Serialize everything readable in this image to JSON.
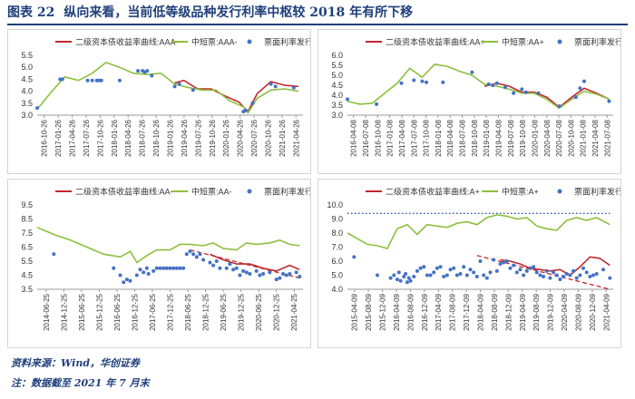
{
  "header": {
    "figure_no": "图表 22",
    "title": "纵向来看，当前低等级品种发行利率中枢较 2018 年有所下移"
  },
  "footer": {
    "source": "资料来源：Wind，华创证券",
    "note": "注：数据截至 2021 年 7 月末"
  },
  "colors": {
    "red": "#c0282d",
    "green": "#8dbf3e",
    "blue": "#4472c4",
    "dotted": "#2f55a4"
  },
  "chart_data": [
    {
      "type": "line",
      "title": "",
      "legend": [
        "二级资本债收益率曲线:AAA-",
        "中短票:AAA-",
        "票面利率发行时"
      ],
      "yticks": [
        "3.0",
        "3.5",
        "4.0",
        "4.5",
        "5.0",
        "5.5"
      ],
      "ylim": [
        3.0,
        5.5
      ],
      "xlim": [
        0,
        58
      ],
      "xtick_labels": [
        "2016-10-26",
        "2017-01-26",
        "2017-04-26",
        "2017-07-26",
        "2017-10-26",
        "2018-01-26",
        "2018-04-26",
        "2018-07-26",
        "2018-10-26",
        "2019-01-26",
        "2019-04-26",
        "2019-07-26",
        "2019-10-26",
        "2020-01-26",
        "2020-04-26",
        "2020-07-26",
        "2020-10-26",
        "2021-01-26",
        "2021-04-26"
      ],
      "series": [
        {
          "name": "二级资本债收益率曲线:AAA-",
          "color": "red",
          "style": "line",
          "x": [
            30,
            32,
            35,
            38,
            41,
            44,
            46,
            48,
            51,
            54,
            57
          ],
          "y": [
            4.35,
            4.45,
            4.1,
            4.1,
            3.8,
            3.55,
            3.15,
            3.9,
            4.4,
            4.25,
            4.2
          ]
        },
        {
          "name": "中短票:AAA-",
          "color": "green",
          "style": "line",
          "x": [
            0,
            3,
            6,
            9,
            12,
            15,
            18,
            21,
            24,
            27,
            30,
            33,
            36,
            39,
            42,
            45,
            46,
            48,
            51,
            54,
            57
          ],
          "y": [
            3.25,
            3.95,
            4.6,
            4.45,
            4.75,
            5.2,
            5.0,
            4.75,
            4.7,
            4.75,
            4.3,
            4.15,
            4.05,
            4.05,
            3.6,
            3.35,
            3.1,
            3.7,
            4.05,
            4.1,
            4.0
          ]
        },
        {
          "name": "票面利率发行时",
          "color": "blue",
          "style": "scatter",
          "x": [
            0,
            5,
            5.5,
            11,
            12,
            13,
            13.5,
            14,
            18,
            22,
            23,
            23.5,
            24,
            25,
            30,
            31,
            34,
            45,
            45.5,
            47,
            51,
            52,
            56
          ],
          "y": [
            3.3,
            4.5,
            4.5,
            4.45,
            4.45,
            4.45,
            4.45,
            4.45,
            4.45,
            4.85,
            4.85,
            4.8,
            4.85,
            4.65,
            4.2,
            4.3,
            4.05,
            3.15,
            3.2,
            3.5,
            4.3,
            4.2,
            4.15
          ]
        }
      ]
    },
    {
      "type": "line",
      "title": "",
      "legend": [
        "二级资本债收益率曲线:AA+",
        "中短票:AA+",
        "票面利率发行时"
      ],
      "yticks": [
        "3.0",
        "3.5",
        "4.0",
        "4.5",
        "5.0",
        "5.5",
        "6.0"
      ],
      "ylim": [
        3.0,
        6.0
      ],
      "xlim": [
        0,
        64
      ],
      "xtick_labels": [
        "2016-04-08",
        "2016-07-08",
        "2016-10-08",
        "2017-01-08",
        "2017-04-08",
        "2017-07-08",
        "2017-10-08",
        "2018-01-08",
        "2018-04-08",
        "2018-07-08",
        "2018-10-08",
        "2019-01-08",
        "2019-04-08",
        "2019-07-08",
        "2019-10-08",
        "2020-01-08",
        "2020-04-08",
        "2020-07-08",
        "2020-10-08",
        "2021-01-08",
        "2021-04-08",
        "2021-07-08"
      ],
      "series": [
        {
          "name": "二级资本债收益率曲线:AA+",
          "color": "red",
          "style": "line",
          "x": [
            33,
            36,
            39,
            42,
            45,
            48,
            51,
            54,
            57,
            60,
            63
          ],
          "y": [
            4.45,
            4.6,
            4.45,
            4.15,
            4.15,
            3.9,
            3.4,
            3.9,
            4.35,
            4.1,
            3.8
          ]
        },
        {
          "name": "中短票:AA+",
          "color": "green",
          "style": "line",
          "x": [
            0,
            3,
            6,
            9,
            12,
            15,
            18,
            21,
            24,
            27,
            30,
            33,
            36,
            39,
            42,
            45,
            48,
            51,
            54,
            57,
            60,
            63
          ],
          "y": [
            3.7,
            3.55,
            3.6,
            4.1,
            4.6,
            5.35,
            4.9,
            5.55,
            5.45,
            5.2,
            5.0,
            4.55,
            4.45,
            4.3,
            4.1,
            4.1,
            3.8,
            3.35,
            3.8,
            4.2,
            4.05,
            3.8
          ]
        },
        {
          "name": "票面利率发行时",
          "color": "blue",
          "style": "scatter",
          "x": [
            0,
            7,
            13,
            16,
            18,
            19,
            23,
            30,
            34,
            35,
            36,
            38,
            40,
            42,
            43,
            46,
            51,
            55,
            56,
            57,
            63
          ],
          "y": [
            3.8,
            3.55,
            4.6,
            4.75,
            4.7,
            4.65,
            4.65,
            5.15,
            4.55,
            4.5,
            4.6,
            4.4,
            4.1,
            4.3,
            4.15,
            4.1,
            3.45,
            3.9,
            4.35,
            4.7,
            3.7
          ]
        }
      ]
    },
    {
      "type": "line",
      "title": "",
      "legend": [
        "二级资本债收益率曲线:AA-",
        "中短票:AA-",
        "票面利率发行时"
      ],
      "yticks": [
        "3.5",
        "4.5",
        "5.5",
        "6.5",
        "7.5",
        "8.5",
        "9.5"
      ],
      "ylim": [
        3.5,
        9.5
      ],
      "xlim": [
        0,
        80
      ],
      "xtick_labels": [
        "2014-06-25",
        "2014-12-25",
        "2015-06-25",
        "2015-12-25",
        "2016-06-25",
        "2016-12-25",
        "2017-06-25",
        "2017-12-25",
        "2018-06-25",
        "2018-12-25",
        "2019-06-25",
        "2019-12-25",
        "2020-06-25",
        "2020-12-25",
        "2021-04-25"
      ],
      "series": [
        {
          "name": "二级资本债收益率曲线:AA-",
          "color": "red",
          "style": "line",
          "x": [
            52,
            56,
            60,
            64,
            68,
            72,
            76,
            79
          ],
          "y": [
            6.0,
            5.6,
            5.3,
            5.3,
            5.0,
            4.8,
            5.2,
            4.9
          ]
        },
        {
          "name": "中短票:AA-",
          "color": "green",
          "style": "line",
          "x": [
            0,
            5,
            10,
            15,
            20,
            25,
            28,
            30,
            33,
            36,
            40,
            43,
            46,
            50,
            53,
            56,
            60,
            63,
            66,
            70,
            73,
            76,
            79
          ],
          "y": [
            7.9,
            7.4,
            7.0,
            6.5,
            6.0,
            5.8,
            6.2,
            5.4,
            5.9,
            6.3,
            6.3,
            6.7,
            6.7,
            6.6,
            6.8,
            6.4,
            6.3,
            6.8,
            6.7,
            6.8,
            7.0,
            6.7,
            6.6
          ]
        },
        {
          "name": "参考趋势线",
          "color": "red",
          "style": "dashed",
          "x": [
            46,
            79
          ],
          "y": [
            6.3,
            4.3
          ]
        },
        {
          "name": "票面利率发行时",
          "color": "blue",
          "style": "scatter",
          "x": [
            5,
            23,
            25,
            26,
            27,
            28,
            30,
            31,
            32,
            33,
            33.5,
            35,
            36,
            37,
            38,
            39,
            40,
            41,
            42,
            43,
            44,
            45,
            46,
            47,
            48,
            49,
            50,
            52,
            53,
            54,
            55,
            57,
            58,
            59,
            60,
            61,
            62,
            63,
            64,
            66,
            67,
            68,
            70,
            72,
            73,
            74,
            75,
            76,
            78,
            79
          ],
          "y": [
            6.0,
            5.0,
            4.5,
            4.0,
            4.2,
            4.1,
            4.5,
            4.9,
            4.7,
            5.0,
            4.6,
            4.8,
            5.0,
            5.0,
            5.0,
            5.0,
            5.0,
            5.0,
            5.0,
            5.0,
            5.0,
            6.0,
            6.2,
            6.0,
            5.8,
            6.0,
            5.6,
            5.4,
            5.2,
            5.5,
            5.0,
            5.0,
            5.3,
            4.9,
            5.0,
            4.5,
            4.8,
            4.7,
            4.6,
            4.8,
            4.5,
            4.6,
            4.7,
            4.2,
            4.3,
            4.6,
            4.5,
            4.6,
            4.7,
            4.4
          ]
        }
      ]
    },
    {
      "type": "line",
      "title": "",
      "legend": [
        "二级资本债收益率曲线:A+",
        "中短票:A+",
        "票面利率发行时"
      ],
      "yticks": [
        "4.0",
        "5.0",
        "6.0",
        "7.0",
        "8.0",
        "9.0",
        "10.0"
      ],
      "ylim": [
        4.0,
        10.0
      ],
      "xlim": [
        0,
        80
      ],
      "xtick_labels": [
        "2015-04-09",
        "2015-08-09",
        "2015-12-09",
        "2016-04-09",
        "2016-08-09",
        "2016-12-09",
        "2017-04-09",
        "2017-08-09",
        "2017-12-09",
        "2018-04-09",
        "2018-08-09",
        "2018-12-09",
        "2019-04-09",
        "2019-08-09",
        "2019-12-09",
        "2020-04-09",
        "2020-08-09",
        "2020-12-09",
        "2021-04-09"
      ],
      "series": [
        {
          "name": "二级资本债收益率曲线:A+",
          "color": "red",
          "style": "line",
          "x": [
            46,
            49,
            52,
            55,
            58,
            61,
            64,
            67,
            70,
            73,
            76,
            79
          ],
          "y": [
            6.1,
            6.0,
            5.8,
            5.5,
            5.4,
            5.3,
            5.4,
            5.0,
            5.6,
            6.3,
            6.2,
            5.7
          ]
        },
        {
          "name": "中短票:A+",
          "color": "green",
          "style": "line",
          "x": [
            0,
            3,
            6,
            9,
            12,
            15,
            18,
            21,
            24,
            27,
            30,
            33,
            36,
            39,
            42,
            45,
            48,
            51,
            54,
            57,
            60,
            63,
            66,
            69,
            72,
            75,
            79
          ],
          "y": [
            8.0,
            7.6,
            7.2,
            7.1,
            6.9,
            8.3,
            8.6,
            7.9,
            8.6,
            8.5,
            8.4,
            8.7,
            8.8,
            8.6,
            9.1,
            9.3,
            9.2,
            9.0,
            9.1,
            8.5,
            8.3,
            8.2,
            8.9,
            9.1,
            8.9,
            9.1,
            8.6
          ]
        },
        {
          "name": "参考线-高",
          "color": "dotted",
          "style": "dotted",
          "x": [
            0,
            79
          ],
          "y": [
            9.4,
            9.4
          ]
        },
        {
          "name": "参考趋势线",
          "color": "red",
          "style": "dashed",
          "x": [
            39,
            79
          ],
          "y": [
            6.4,
            4.0
          ]
        },
        {
          "name": "票面利率发行时",
          "color": "blue",
          "style": "scatter",
          "x": [
            2,
            9,
            13,
            14,
            15,
            15.5,
            16,
            17,
            17.5,
            18,
            18.5,
            19,
            20,
            21,
            22,
            23,
            24,
            25,
            26,
            27,
            28,
            29,
            30,
            31,
            32,
            33,
            34,
            35,
            36,
            37,
            38,
            39,
            40,
            41,
            42,
            43,
            44,
            45,
            46,
            47,
            48,
            49,
            50,
            51,
            52,
            53,
            54,
            55,
            56,
            57,
            58,
            59,
            60,
            61,
            62,
            63,
            64,
            65,
            66,
            67,
            68,
            69,
            70,
            71,
            72,
            73,
            74,
            75,
            77,
            79
          ],
          "y": [
            6.3,
            5.0,
            4.8,
            5.0,
            4.7,
            5.2,
            4.6,
            4.9,
            5.1,
            4.5,
            4.8,
            4.6,
            4.9,
            5.3,
            5.5,
            5.6,
            5.0,
            5.0,
            5.2,
            5.5,
            5.6,
            4.9,
            5.0,
            5.4,
            5.5,
            5.0,
            5.1,
            5.6,
            5.0,
            5.4,
            5.2,
            4.9,
            6.0,
            5.0,
            4.8,
            5.2,
            6.1,
            5.3,
            5.8,
            5.9,
            6.0,
            5.5,
            5.7,
            5.2,
            5.4,
            5.0,
            5.3,
            5.5,
            5.6,
            5.2,
            5.0,
            4.9,
            5.3,
            4.8,
            5.2,
            5.0,
            4.7,
            4.9,
            5.1,
            5.0,
            5.3,
            4.8,
            5.0,
            5.5,
            5.2,
            4.9,
            5.0,
            5.1,
            5.4,
            4.8
          ]
        }
      ]
    }
  ]
}
